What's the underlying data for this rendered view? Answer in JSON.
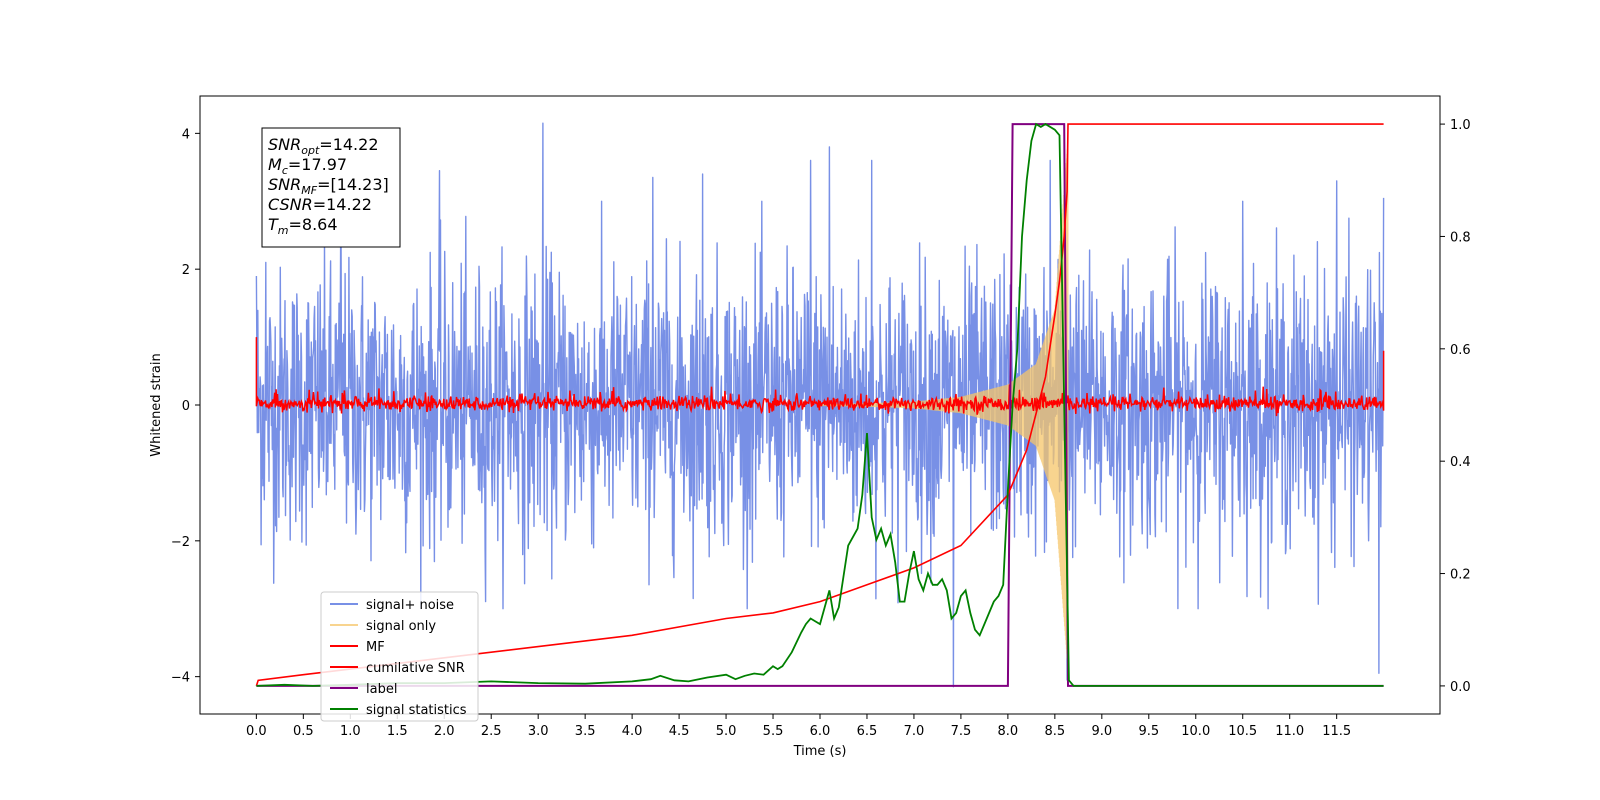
{
  "chart_data": {
    "type": "line",
    "xlabel": "Time (s)",
    "ylabel": "Whitened strain",
    "xlim": [
      -0.6,
      12.6
    ],
    "ylim": [
      -4.55,
      4.55
    ],
    "y2lim": [
      -0.05,
      1.05
    ],
    "x_ticks": [
      0.0,
      0.5,
      1.0,
      1.5,
      2.0,
      2.5,
      3.0,
      3.5,
      4.0,
      4.5,
      5.0,
      5.5,
      6.0,
      6.5,
      7.0,
      7.5,
      8.0,
      8.5,
      9.0,
      9.5,
      10.0,
      10.5,
      11.0,
      11.5
    ],
    "x_tick_labels": [
      "0.0",
      "0.5",
      "1.0",
      "1.5",
      "2.0",
      "2.5",
      "3.0",
      "3.5",
      "4.0",
      "4.5",
      "5.0",
      "5.5",
      "6.0",
      "6.5",
      "7.0",
      "7.5",
      "8.0",
      "8.5",
      "9.0",
      "9.5",
      "10.0",
      "10.5",
      "11.0",
      "11.5"
    ],
    "y_ticks": [
      -4,
      -2,
      0,
      2,
      4
    ],
    "y_tick_labels": [
      "−4",
      "−2",
      "0",
      "2",
      "4"
    ],
    "y2_ticks": [
      0.0,
      0.2,
      0.4,
      0.6,
      0.8,
      1.0
    ],
    "y2_tick_labels": [
      "0.0",
      "0.2",
      "0.4",
      "0.6",
      "0.8",
      "1.0"
    ],
    "grid": false,
    "legend_position": "lower-left",
    "annotation": [
      {
        "base": "SNR",
        "sub": "opt",
        "value": "=14.22"
      },
      {
        "base": "M",
        "sub": "c",
        "value": "=17.97"
      },
      {
        "base": "SNR",
        "sub": "MF",
        "value": "=[14.23]"
      },
      {
        "base": "CSNR",
        "sub": "",
        "value": "=14.22"
      },
      {
        "base": "T",
        "sub": "m",
        "value": "=8.64"
      }
    ],
    "series": [
      {
        "name": "signal+ noise",
        "color": "#7890e6",
        "axis": "left",
        "x_range": [
          0.0,
          12.0
        ],
        "noise_amplitude_sigma": 1.0,
        "notable_peaks": [
          [
            0.0,
            1.9
          ],
          [
            0.1,
            2.1
          ],
          [
            0.9,
            3.2
          ],
          [
            1.95,
            3.45
          ],
          [
            3.05,
            4.15
          ],
          [
            4.22,
            3.35
          ],
          [
            4.75,
            3.4
          ],
          [
            5.9,
            3.6
          ],
          [
            6.1,
            3.8
          ],
          [
            6.55,
            3.6
          ],
          [
            7.42,
            2.6
          ],
          [
            7.42,
            -4.15
          ],
          [
            8.45,
            3.6
          ],
          [
            8.63,
            -4.05
          ],
          [
            10.5,
            3.0
          ],
          [
            11.5,
            3.3
          ],
          [
            11.95,
            -3.95
          ],
          [
            12.0,
            3.05
          ]
        ]
      },
      {
        "name": "signal only",
        "color": "#f5c56a",
        "axis": "left",
        "x_range": [
          6.0,
          8.64
        ],
        "envelope_at": [
          [
            7.0,
            0.05
          ],
          [
            7.5,
            0.12
          ],
          [
            8.0,
            0.3
          ],
          [
            8.3,
            0.6
          ],
          [
            8.5,
            1.4
          ],
          [
            8.64,
            3.9
          ]
        ]
      },
      {
        "name": "MF",
        "color": "#ff0000",
        "axis": "left",
        "x_range": [
          0.0,
          12.0
        ],
        "baseline": 0.02,
        "noise_amplitude": 0.12,
        "start_value": 1.0,
        "end_value": 0.8
      },
      {
        "name": "cumilative SNR",
        "color": "#ff0000",
        "axis": "right",
        "x": [
          0.0,
          0.02,
          0.5,
          1.0,
          2.0,
          3.0,
          4.0,
          5.0,
          5.5,
          6.0,
          6.5,
          7.0,
          7.5,
          8.0,
          8.2,
          8.4,
          8.5,
          8.55,
          8.6,
          8.63,
          8.64,
          12.0
        ],
        "values": [
          0.0,
          0.01,
          0.02,
          0.03,
          0.05,
          0.07,
          0.09,
          0.12,
          0.13,
          0.15,
          0.18,
          0.21,
          0.25,
          0.34,
          0.42,
          0.55,
          0.66,
          0.72,
          0.8,
          0.88,
          1.0,
          1.0
        ]
      },
      {
        "name": "label",
        "color": "#800080",
        "axis": "right",
        "x": [
          0.0,
          8.0,
          8.05,
          8.6,
          8.64,
          12.0
        ],
        "values": [
          0.0,
          0.0,
          1.0,
          1.0,
          0.0,
          0.0
        ]
      },
      {
        "name": "signal statistics",
        "color": "#008000",
        "axis": "right",
        "x": [
          0.0,
          0.3,
          0.6,
          1.0,
          1.5,
          2.0,
          2.5,
          3.0,
          3.5,
          4.0,
          4.2,
          4.3,
          4.45,
          4.6,
          4.8,
          5.0,
          5.1,
          5.2,
          5.3,
          5.4,
          5.5,
          5.55,
          5.6,
          5.7,
          5.8,
          5.85,
          5.9,
          6.0,
          6.05,
          6.1,
          6.15,
          6.2,
          6.3,
          6.4,
          6.45,
          6.5,
          6.55,
          6.6,
          6.65,
          6.7,
          6.75,
          6.8,
          6.85,
          6.9,
          6.95,
          7.0,
          7.05,
          7.1,
          7.15,
          7.2,
          7.25,
          7.3,
          7.35,
          7.4,
          7.45,
          7.5,
          7.55,
          7.6,
          7.65,
          7.7,
          7.75,
          7.8,
          7.85,
          7.9,
          7.95,
          8.0,
          8.05,
          8.1,
          8.15,
          8.2,
          8.25,
          8.3,
          8.35,
          8.4,
          8.5,
          8.55,
          8.6,
          8.65,
          8.7,
          8.75,
          12.0
        ],
        "values": [
          0.0,
          0.002,
          0.0,
          0.002,
          0.005,
          0.005,
          0.008,
          0.005,
          0.004,
          0.008,
          0.012,
          0.018,
          0.01,
          0.008,
          0.015,
          0.02,
          0.012,
          0.018,
          0.022,
          0.02,
          0.035,
          0.03,
          0.035,
          0.06,
          0.095,
          0.11,
          0.12,
          0.11,
          0.14,
          0.17,
          0.12,
          0.14,
          0.25,
          0.28,
          0.34,
          0.45,
          0.3,
          0.26,
          0.28,
          0.25,
          0.27,
          0.22,
          0.15,
          0.15,
          0.2,
          0.24,
          0.19,
          0.17,
          0.2,
          0.18,
          0.18,
          0.19,
          0.17,
          0.12,
          0.13,
          0.16,
          0.17,
          0.13,
          0.1,
          0.09,
          0.11,
          0.13,
          0.15,
          0.16,
          0.18,
          0.35,
          0.5,
          0.6,
          0.8,
          0.9,
          0.97,
          1.0,
          0.995,
          1.0,
          0.99,
          0.98,
          0.5,
          0.01,
          0.0,
          0.0,
          0.0
        ]
      }
    ]
  }
}
